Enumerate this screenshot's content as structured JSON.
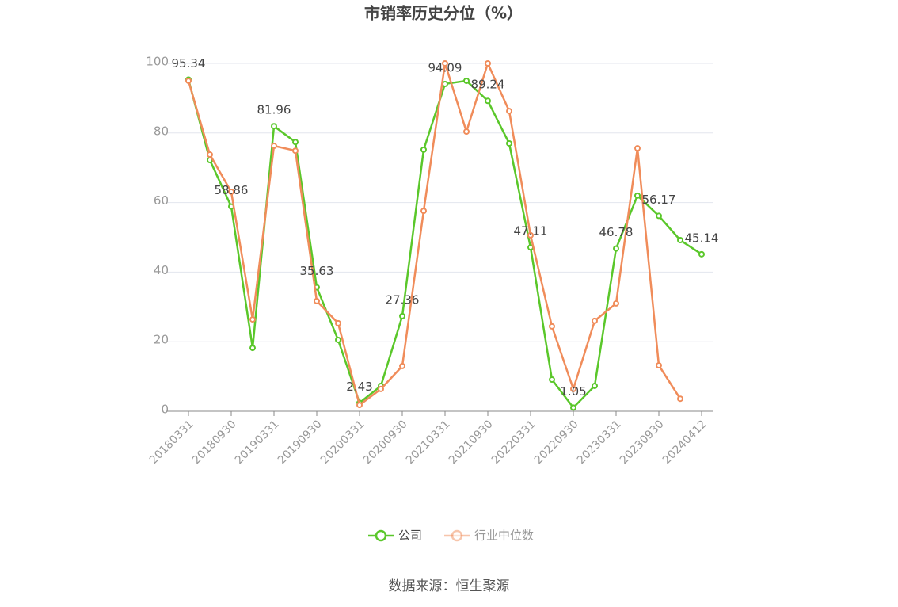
{
  "chart_data": {
    "type": "line",
    "title": "市销率历史分位（%）",
    "source": "数据来源：恒生聚源",
    "categories": [
      "20180331",
      null,
      "20180930",
      null,
      "20190331",
      null,
      "20190930",
      null,
      "20200331",
      null,
      "20200930",
      null,
      "20210331",
      null,
      "20210930",
      null,
      "20220331",
      null,
      "20220930",
      null,
      "20230331",
      null,
      "20230930",
      null,
      "20240412"
    ],
    "series": [
      {
        "name": "公司",
        "color": "#5ac72a",
        "values": [
          95.34,
          72.2,
          58.86,
          18.2,
          81.96,
          77.4,
          35.63,
          20.5,
          2.43,
          7.3,
          27.36,
          75.2,
          94.09,
          95.0,
          89.24,
          77.0,
          47.11,
          9.1,
          1.05,
          7.3,
          46.78,
          62.0,
          56.17,
          49.2,
          45.14
        ]
      },
      {
        "name": "行业中位数",
        "color": "#f08c5a",
        "values": [
          95.0,
          73.8,
          63.1,
          26.4,
          76.3,
          74.9,
          31.7,
          25.3,
          1.8,
          6.4,
          13.0,
          57.6,
          100,
          80.4,
          100,
          86.3,
          50.6,
          24.4,
          6.4,
          26.0,
          31.0,
          75.6,
          13.2,
          3.6,
          null
        ]
      }
    ],
    "ylim": [
      0,
      100
    ],
    "yticks": [
      0,
      20,
      40,
      60,
      80,
      100
    ],
    "grid": true
  }
}
